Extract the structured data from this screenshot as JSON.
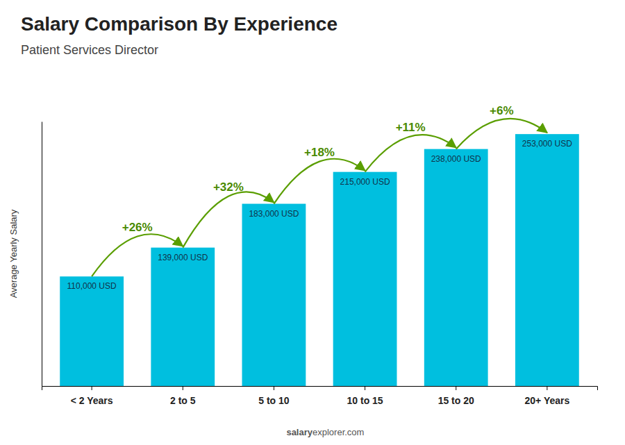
{
  "chart_data": {
    "type": "bar",
    "title": "Salary Comparison By Experience",
    "subtitle": "Patient Services Director",
    "ylabel": "Average Yearly Salary",
    "categories": [
      "< 2 Years",
      "2 to 5",
      "5 to 10",
      "10 to 15",
      "15 to 20",
      "20+ Years"
    ],
    "values": [
      110000,
      139000,
      183000,
      215000,
      238000,
      253000
    ],
    "value_labels": [
      "110,000 USD",
      "139,000 USD",
      "183,000 USD",
      "215,000 USD",
      "238,000 USD",
      "253,000 USD"
    ],
    "data_labels": true,
    "color": "#00bfdf",
    "ylim": [
      0,
      265650
    ],
    "tick_labels": "x",
    "annotations": [
      "+26%",
      "+32%",
      "+18%",
      "+11%",
      "+6%"
    ],
    "watermark": [
      "salary",
      "explorer.com"
    ]
  }
}
